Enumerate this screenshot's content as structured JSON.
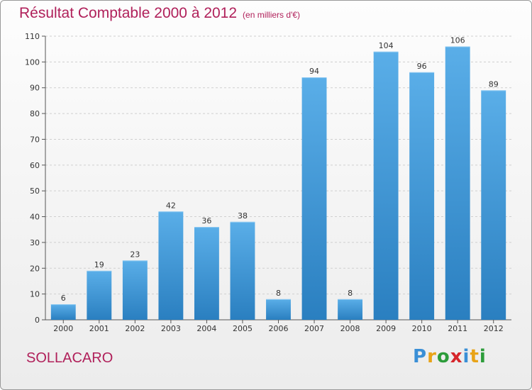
{
  "header": {
    "title": "Résultat Comptable 2000 à 2012",
    "subtitle": "(en milliers d'€)"
  },
  "footer": {
    "commune": "SOLLACARO",
    "logo": {
      "text": "Proxiti",
      "letters": [
        "P",
        "r",
        "o",
        "x",
        "i",
        "t",
        "i"
      ],
      "colors": [
        "#3a8fd6",
        "#e8a317",
        "#2c9c3a",
        "#d6262b",
        "#3a8fd6",
        "#e8a317",
        "#2c9c3a"
      ]
    }
  },
  "colors": {
    "bar_top": "#5aaee8",
    "bar_bottom": "#2a7fc0",
    "text": "#b0205a"
  },
  "chart_data": {
    "type": "bar",
    "title": "Résultat Comptable 2000 à 2012",
    "subtitle": "(en milliers d'€)",
    "xlabel": "",
    "ylabel": "",
    "categories": [
      "2000",
      "2001",
      "2002",
      "2003",
      "2004",
      "2005",
      "2006",
      "2007",
      "2008",
      "2009",
      "2010",
      "2011",
      "2012"
    ],
    "values": [
      6,
      19,
      23,
      42,
      36,
      38,
      8,
      94,
      8,
      104,
      96,
      106,
      89
    ],
    "ylim": [
      0,
      110
    ],
    "yticks": [
      0,
      10,
      20,
      30,
      40,
      50,
      60,
      70,
      80,
      90,
      100,
      110
    ],
    "grid": true
  }
}
